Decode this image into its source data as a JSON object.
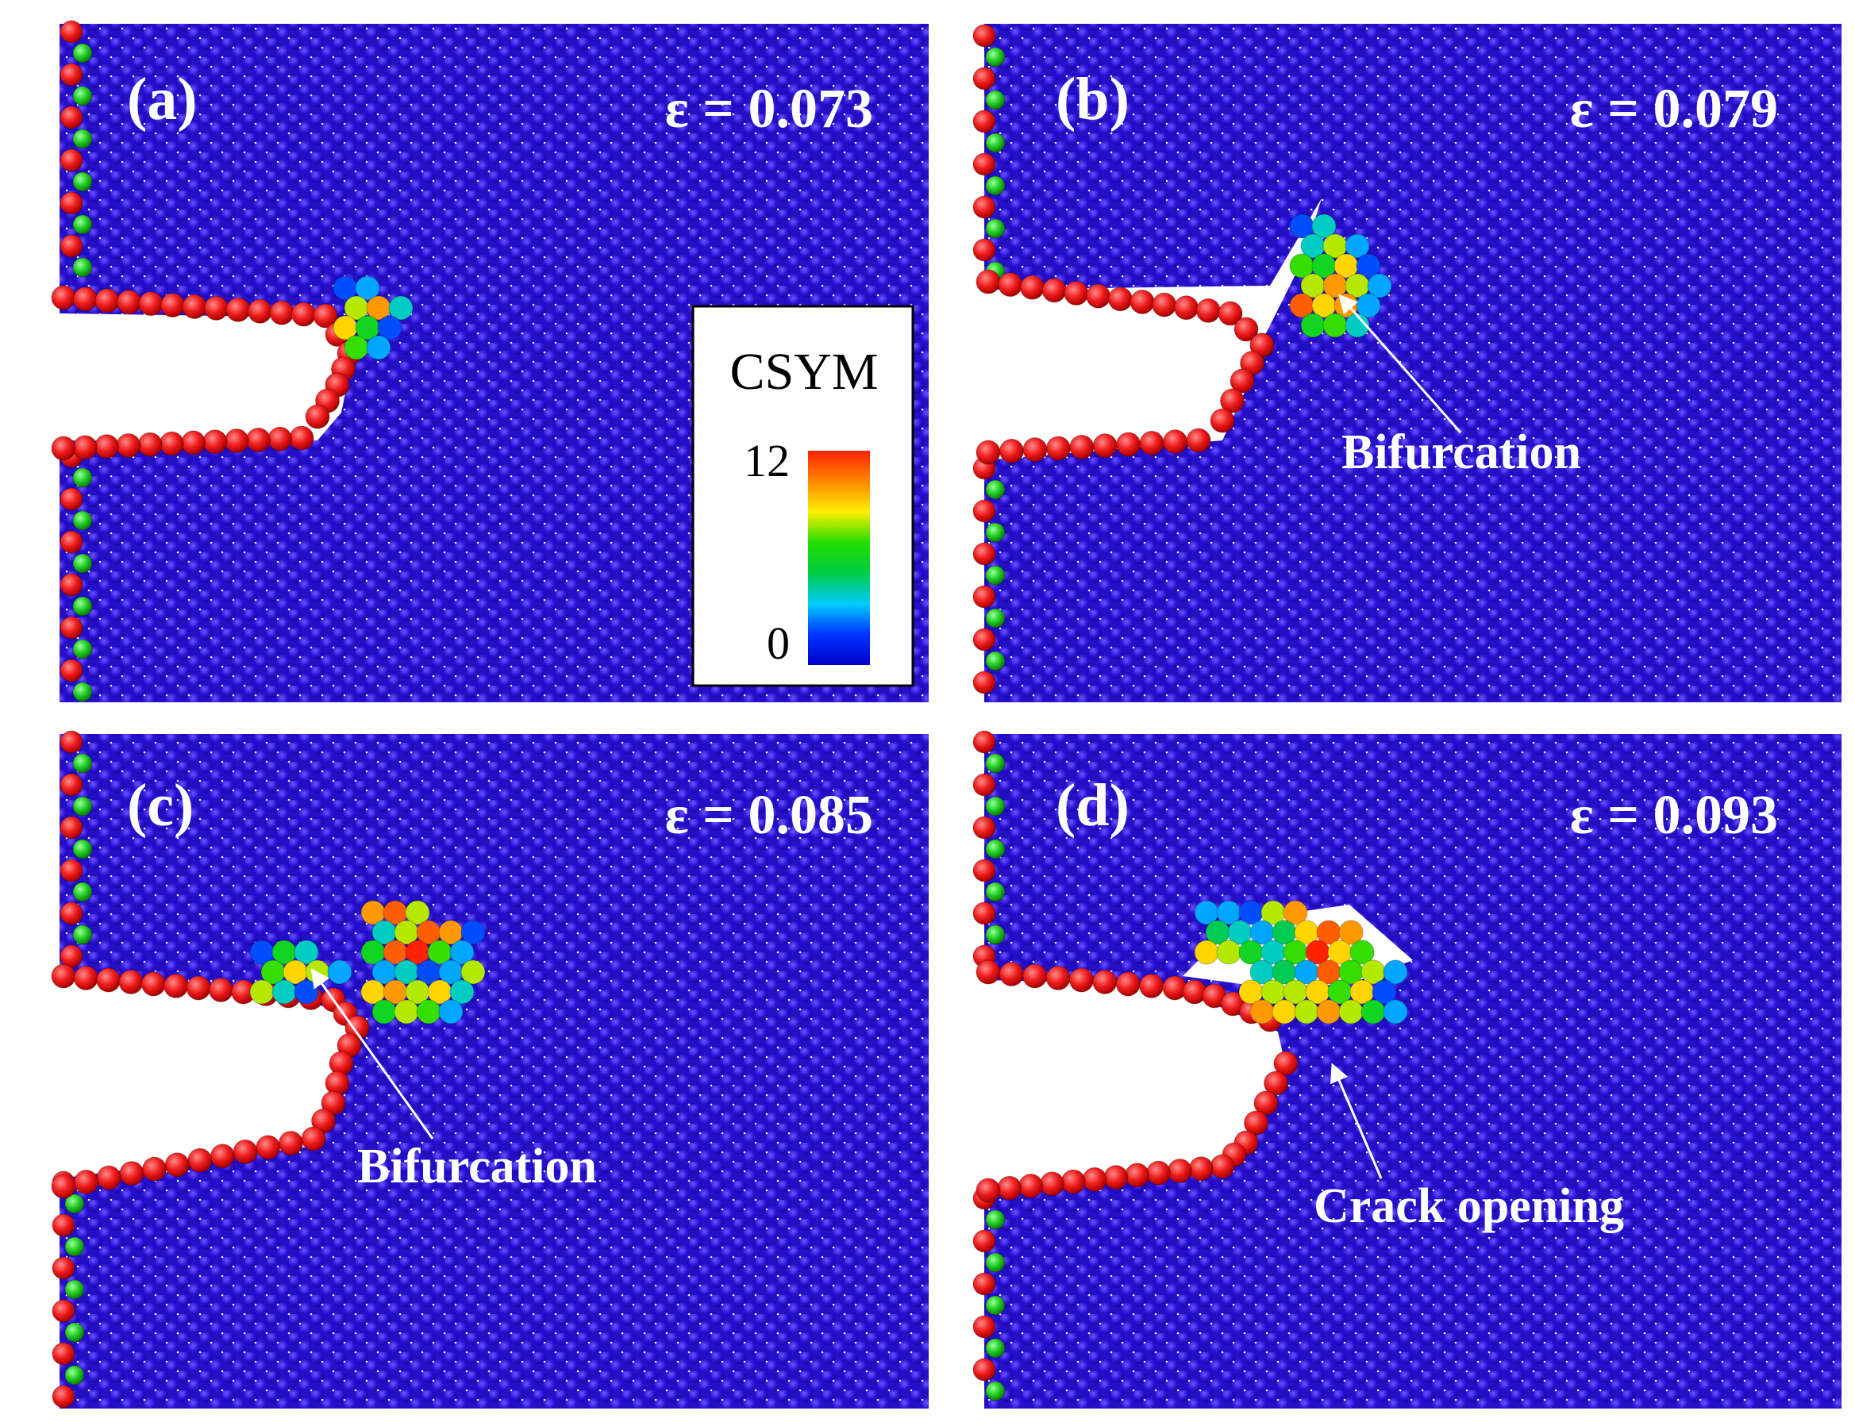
{
  "panels": [
    {
      "label": "(a)",
      "strain": "ε = 0.073",
      "annotation": ""
    },
    {
      "label": "(b)",
      "strain": "ε = 0.079",
      "annotation": "Bifurcation"
    },
    {
      "label": "(c)",
      "strain": "ε = 0.085",
      "annotation": "Bifurcation"
    },
    {
      "label": "(d)",
      "strain": "ε = 0.093",
      "annotation": "Crack opening"
    }
  ],
  "colorbar": {
    "title": "CSYM",
    "max_label": "12",
    "min_label": "0",
    "min_value": 0,
    "max_value": 12,
    "colors": [
      "#0000cc",
      "#0033ff",
      "#00ccff",
      "#00cc44",
      "#22dd00",
      "#ffee00",
      "#ff8800",
      "#ff2200"
    ]
  },
  "colors": {
    "background_atom": "#2c0fd6",
    "surface_atom": "#ee1c1c",
    "edge_atom": "#22cc22"
  }
}
